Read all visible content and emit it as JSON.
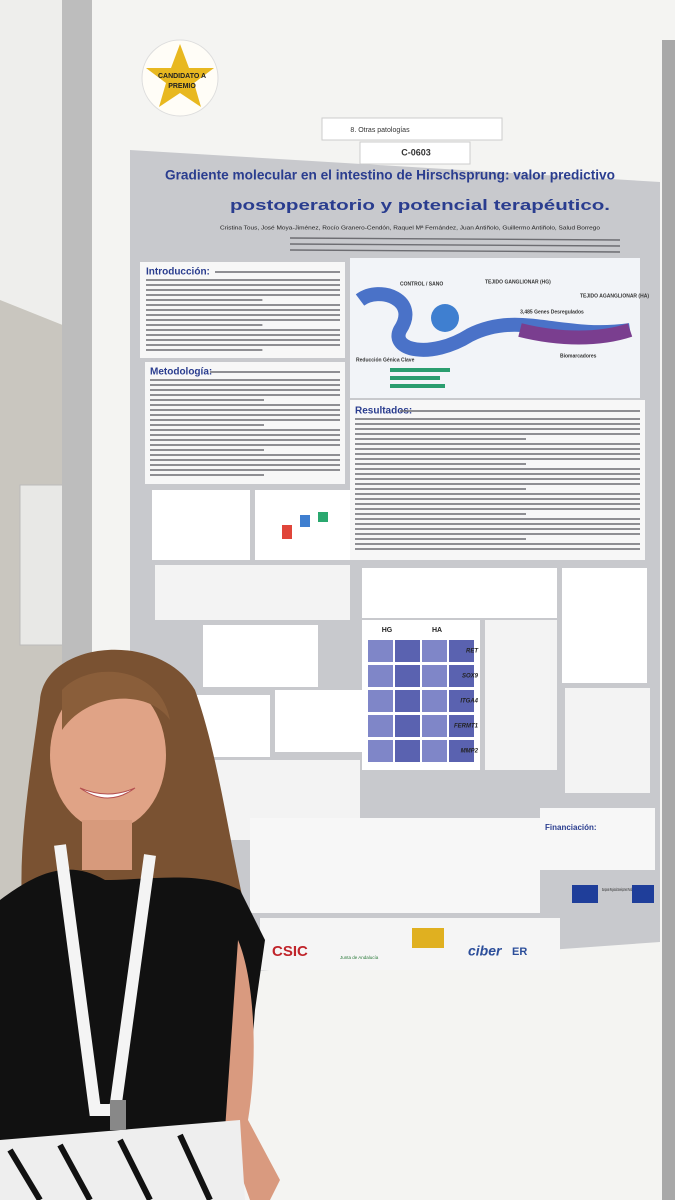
{
  "badge": {
    "line1": "CANDIDATO A",
    "line2": "PREMIO"
  },
  "poster": {
    "category": "8. Otras patologías",
    "code": "C-0603",
    "title_lines": [
      "Gradiente molecular en el intestino de Hirschsprung: valor predictivo",
      "postoperatorio y potencial terapéutico."
    ],
    "authors": "Cristina Tous, José Moya-Jiménez, Rocío Granero-Cendón, Raquel Mª Fernández, Juan Antiñolo, Guillermo Antiñolo, Salud Borrego",
    "sections": {
      "intro": "Introducción:",
      "methods": "Metodología:",
      "results": "Resultados:",
      "funding": "Financiación:"
    },
    "figure": {
      "control": "CONTROL / SANO",
      "hg": "TEJIDO GANGLIONAR (HG)",
      "ha": "TEJIDO AGANGLIONAR (HA)",
      "genes": "3,485 Genes Desregulados",
      "reduction": "Reducción Génica Clave",
      "biomarkers": "Biomarcadores"
    },
    "grid": {
      "col1": "HG",
      "col2": "HA",
      "rows": [
        "RET",
        "SOX9",
        "ITGA4",
        "FERMT1",
        "MMP2"
      ]
    },
    "logos": {
      "csic": "CSIC",
      "junta": "Junta de Andalucía",
      "ciber": "ciber",
      "er": "ER",
      "eu": "European Regional Development Fund"
    }
  }
}
